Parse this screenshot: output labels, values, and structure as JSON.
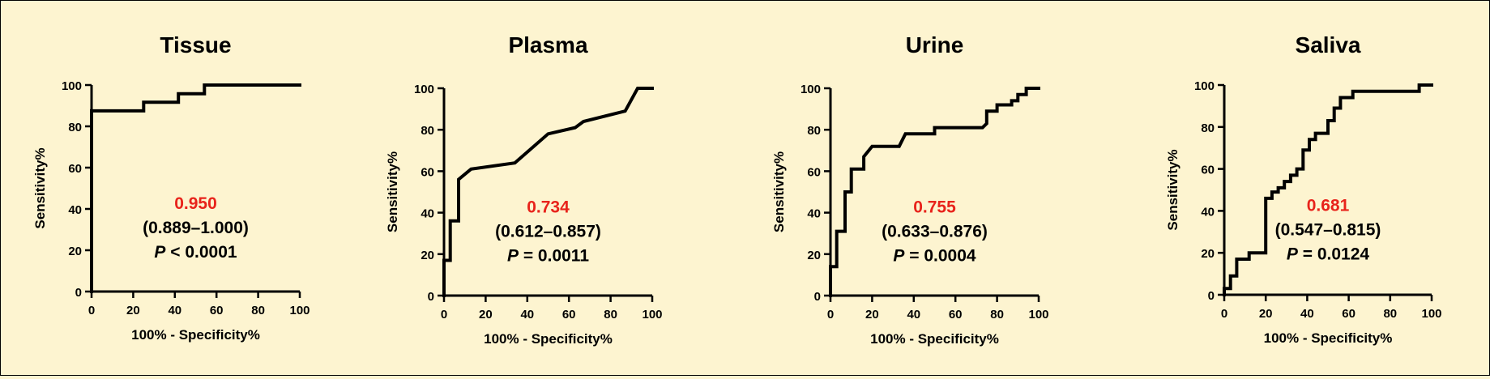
{
  "chart_data": [
    {
      "type": "line",
      "title": "Tissue",
      "xlabel": "100% - Specificity%",
      "ylabel": "Sensitivity%",
      "xlim": [
        0,
        100
      ],
      "ylim": [
        0,
        100
      ],
      "xticks": [
        "0",
        "20",
        "40",
        "60",
        "80",
        "100"
      ],
      "yticks": [
        "0",
        "20",
        "40",
        "60",
        "80",
        "100"
      ],
      "auc": "0.950",
      "ci": "(0.889–1.000)",
      "p_label": "P",
      "p_value": "< 0.0001",
      "series": [
        {
          "x": [
            0,
            0,
            25,
            25,
            41.7,
            41.7,
            54.2,
            54.2,
            100
          ],
          "y": [
            0,
            87.5,
            87.5,
            91.7,
            91.7,
            95.8,
            95.8,
            100,
            100
          ]
        }
      ]
    },
    {
      "type": "line",
      "title": "Plasma",
      "xlabel": "100% - Specificity%",
      "ylabel": "Sensitivity%",
      "xlim": [
        0,
        100
      ],
      "ylim": [
        0,
        100
      ],
      "xticks": [
        "0",
        "20",
        "40",
        "60",
        "80",
        "100"
      ],
      "yticks": [
        "0",
        "20",
        "40",
        "60",
        "80",
        "100"
      ],
      "auc": "0.734",
      "ci": "(0.612–0.857)",
      "p_label": "P",
      "p_value": "= 0.0011",
      "series": [
        {
          "x": [
            0,
            0,
            3,
            3,
            7,
            7,
            13,
            34,
            50,
            63,
            67,
            87,
            93,
            100
          ],
          "y": [
            0,
            17,
            17,
            36,
            36,
            56,
            61,
            64,
            78,
            81,
            84,
            89,
            100,
            100
          ]
        }
      ]
    },
    {
      "type": "line",
      "title": "Urine",
      "xlabel": "100% - Specificity%",
      "ylabel": "Sensitivity%",
      "xlim": [
        0,
        100
      ],
      "ylim": [
        0,
        100
      ],
      "xticks": [
        "0",
        "20",
        "40",
        "60",
        "80",
        "100"
      ],
      "yticks": [
        "0",
        "20",
        "40",
        "60",
        "80",
        "100"
      ],
      "auc": "0.755",
      "ci": "(0.633–0.876)",
      "p_label": "P",
      "p_value": "= 0.0004",
      "series": [
        {
          "x": [
            0,
            0,
            3,
            3,
            7,
            7,
            10,
            10,
            16,
            16,
            20,
            33,
            36,
            50,
            50,
            73,
            75,
            75,
            80,
            80,
            87,
            87,
            90,
            90,
            94,
            94,
            100
          ],
          "y": [
            0,
            14,
            14,
            31,
            31,
            50,
            50,
            61,
            61,
            67,
            72,
            72,
            78,
            78,
            81,
            81,
            83,
            89,
            89,
            92,
            92,
            94,
            94,
            97,
            97,
            100,
            100
          ]
        }
      ]
    },
    {
      "type": "line",
      "title": "Saliva",
      "xlabel": "100% - Specificity%",
      "ylabel": "Sensitivity%",
      "xlim": [
        0,
        100
      ],
      "ylim": [
        0,
        100
      ],
      "xticks": [
        "0",
        "20",
        "40",
        "60",
        "80",
        "100"
      ],
      "yticks": [
        "0",
        "20",
        "40",
        "60",
        "80",
        "100"
      ],
      "auc": "0.681",
      "ci": "(0.547–0.815)",
      "p_label": "P",
      "p_value": "= 0.0124",
      "series": [
        {
          "x": [
            0,
            0,
            3,
            3,
            6,
            6,
            12,
            12,
            20,
            20,
            23,
            23,
            26,
            26,
            29,
            29,
            32,
            32,
            35,
            35,
            38,
            38,
            41,
            41,
            44,
            44,
            50,
            50,
            53,
            53,
            56,
            56,
            62,
            62,
            94,
            94,
            100
          ],
          "y": [
            0,
            3,
            3,
            9,
            9,
            17,
            17,
            20,
            20,
            46,
            46,
            49,
            49,
            51,
            51,
            54,
            54,
            57,
            57,
            60,
            60,
            69,
            69,
            74,
            74,
            77,
            77,
            83,
            83,
            89,
            89,
            94,
            94,
            97,
            97,
            100,
            100
          ]
        }
      ]
    }
  ]
}
